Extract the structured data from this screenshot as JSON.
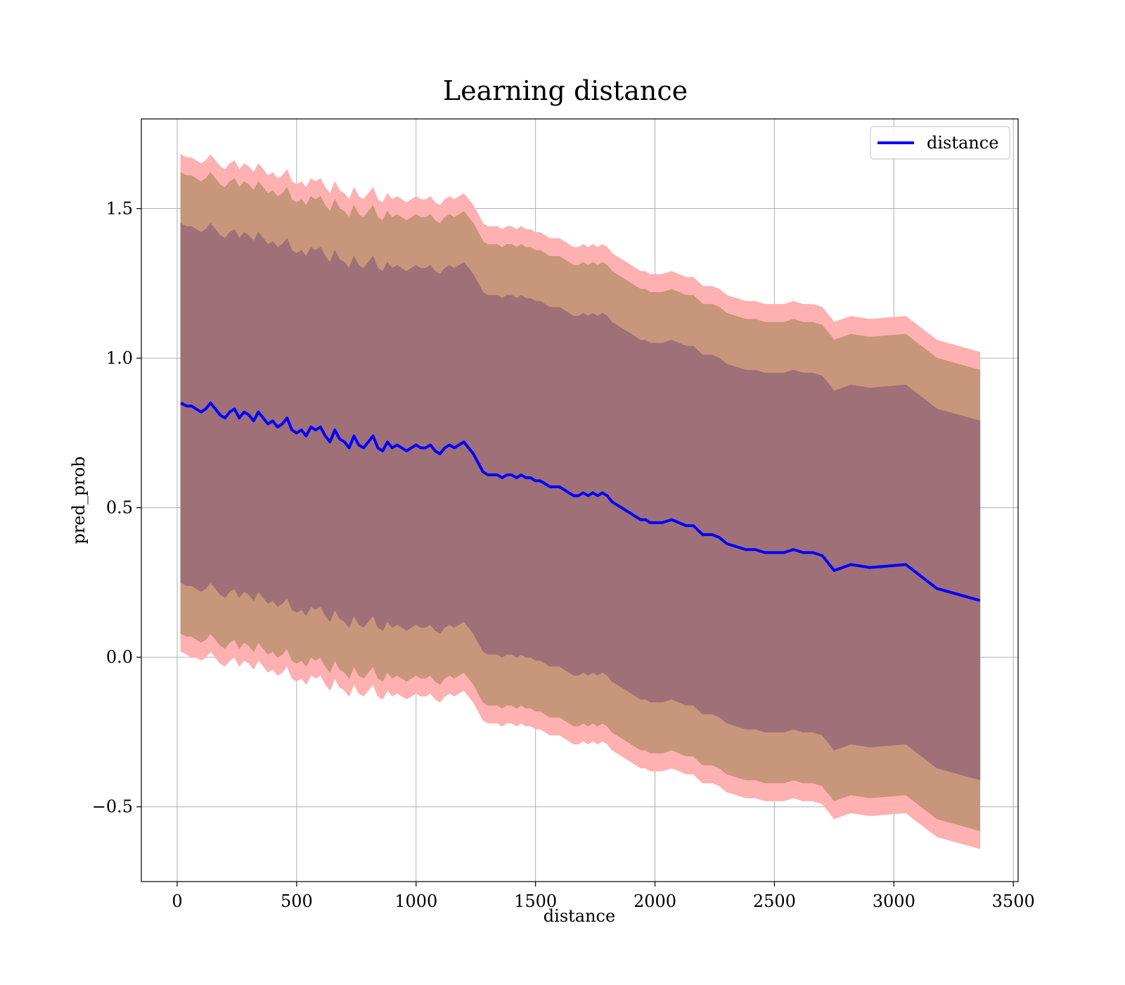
{
  "chart_data": {
    "type": "line",
    "title": "Learning distance",
    "xlabel": "distance",
    "ylabel": "pred_prob",
    "xlim": [
      -150,
      3520
    ],
    "ylim": [
      -0.75,
      1.8
    ],
    "grid": true,
    "legend_position": "top-right",
    "x_ticks": [
      0,
      500,
      1000,
      1500,
      2000,
      2500,
      3000,
      3500
    ],
    "x_tick_labels": [
      "0",
      "500",
      "1000",
      "1500",
      "2000",
      "2500",
      "3000",
      "3500"
    ],
    "y_ticks": [
      -0.5,
      0.0,
      0.5,
      1.0,
      1.5
    ],
    "y_tick_labels": [
      "−0.5",
      "0.0",
      "0.5",
      "1.0",
      "1.5"
    ],
    "colors": {
      "line": "#0000ff",
      "band_outer": "#ffb0b0",
      "band_middle": "#c8967a",
      "band_inner": "#a07078"
    },
    "series": [
      {
        "name": "distance",
        "x": [
          15,
          40,
          60,
          80,
          100,
          120,
          140,
          160,
          180,
          200,
          220,
          240,
          260,
          280,
          300,
          320,
          340,
          360,
          380,
          400,
          420,
          440,
          460,
          480,
          500,
          520,
          540,
          560,
          580,
          600,
          620,
          640,
          660,
          680,
          700,
          720,
          740,
          760,
          780,
          800,
          820,
          840,
          860,
          880,
          900,
          920,
          940,
          960,
          980,
          1000,
          1020,
          1040,
          1060,
          1080,
          1100,
          1120,
          1140,
          1160,
          1180,
          1200,
          1220,
          1240,
          1260,
          1280,
          1300,
          1320,
          1340,
          1360,
          1380,
          1400,
          1420,
          1440,
          1460,
          1480,
          1500,
          1520,
          1540,
          1560,
          1580,
          1600,
          1620,
          1640,
          1660,
          1680,
          1700,
          1720,
          1740,
          1760,
          1780,
          1800,
          1820,
          1840,
          1860,
          1880,
          1900,
          1920,
          1940,
          1960,
          1980,
          2000,
          2030,
          2070,
          2100,
          2130,
          2160,
          2200,
          2240,
          2270,
          2300,
          2340,
          2380,
          2420,
          2460,
          2500,
          2540,
          2580,
          2620,
          2660,
          2700,
          2750,
          2820,
          2900,
          3050,
          3180,
          3360
        ],
        "values": [
          0.85,
          0.84,
          0.84,
          0.83,
          0.82,
          0.83,
          0.85,
          0.83,
          0.81,
          0.8,
          0.82,
          0.83,
          0.8,
          0.82,
          0.81,
          0.79,
          0.82,
          0.8,
          0.78,
          0.79,
          0.77,
          0.78,
          0.8,
          0.76,
          0.75,
          0.76,
          0.74,
          0.77,
          0.76,
          0.77,
          0.74,
          0.72,
          0.76,
          0.73,
          0.72,
          0.7,
          0.74,
          0.71,
          0.7,
          0.72,
          0.74,
          0.7,
          0.69,
          0.72,
          0.7,
          0.71,
          0.7,
          0.69,
          0.7,
          0.71,
          0.7,
          0.7,
          0.71,
          0.69,
          0.68,
          0.7,
          0.71,
          0.7,
          0.71,
          0.72,
          0.7,
          0.68,
          0.65,
          0.62,
          0.61,
          0.61,
          0.61,
          0.6,
          0.61,
          0.61,
          0.6,
          0.61,
          0.6,
          0.6,
          0.59,
          0.59,
          0.58,
          0.57,
          0.57,
          0.57,
          0.56,
          0.55,
          0.54,
          0.54,
          0.55,
          0.54,
          0.55,
          0.54,
          0.55,
          0.54,
          0.52,
          0.51,
          0.5,
          0.49,
          0.48,
          0.47,
          0.46,
          0.46,
          0.45,
          0.45,
          0.45,
          0.46,
          0.45,
          0.44,
          0.44,
          0.41,
          0.41,
          0.4,
          0.38,
          0.37,
          0.36,
          0.36,
          0.35,
          0.35,
          0.35,
          0.36,
          0.35,
          0.35,
          0.34,
          0.29,
          0.31,
          0.3,
          0.31,
          0.23,
          0.19
        ]
      }
    ],
    "bands": [
      {
        "level": "outer",
        "lower": [
          0.02,
          0.01,
          0.0,
          0.0,
          -0.01,
          0.0,
          0.02,
          0.0,
          -0.02,
          -0.03,
          -0.01,
          0.0,
          -0.03,
          -0.01,
          -0.02,
          -0.04,
          -0.01,
          -0.03,
          -0.05,
          -0.04,
          -0.06,
          -0.05,
          -0.03,
          -0.07,
          -0.08,
          -0.07,
          -0.09,
          -0.06,
          -0.07,
          -0.06,
          -0.09,
          -0.11,
          -0.07,
          -0.1,
          -0.11,
          -0.13,
          -0.09,
          -0.12,
          -0.13,
          -0.11,
          -0.09,
          -0.13,
          -0.14,
          -0.11,
          -0.13,
          -0.12,
          -0.13,
          -0.14,
          -0.13,
          -0.12,
          -0.13,
          -0.13,
          -0.12,
          -0.14,
          -0.15,
          -0.13,
          -0.12,
          -0.13,
          -0.12,
          -0.11,
          -0.13,
          -0.15,
          -0.18,
          -0.21,
          -0.22,
          -0.22,
          -0.22,
          -0.23,
          -0.22,
          -0.22,
          -0.23,
          -0.22,
          -0.23,
          -0.23,
          -0.24,
          -0.24,
          -0.25,
          -0.26,
          -0.26,
          -0.26,
          -0.27,
          -0.28,
          -0.29,
          -0.29,
          -0.28,
          -0.29,
          -0.28,
          -0.29,
          -0.28,
          -0.29,
          -0.31,
          -0.32,
          -0.33,
          -0.34,
          -0.35,
          -0.36,
          -0.37,
          -0.37,
          -0.38,
          -0.38,
          -0.38,
          -0.37,
          -0.38,
          -0.39,
          -0.39,
          -0.42,
          -0.42,
          -0.43,
          -0.45,
          -0.46,
          -0.47,
          -0.47,
          -0.48,
          -0.48,
          -0.48,
          -0.47,
          -0.48,
          -0.48,
          -0.49,
          -0.54,
          -0.52,
          -0.53,
          -0.52,
          -0.6,
          -0.64
        ],
        "upper": [
          1.68,
          1.67,
          1.67,
          1.66,
          1.65,
          1.66,
          1.68,
          1.66,
          1.64,
          1.63,
          1.65,
          1.66,
          1.63,
          1.65,
          1.64,
          1.62,
          1.65,
          1.63,
          1.61,
          1.62,
          1.6,
          1.61,
          1.63,
          1.59,
          1.58,
          1.59,
          1.57,
          1.6,
          1.59,
          1.6,
          1.57,
          1.55,
          1.59,
          1.56,
          1.55,
          1.53,
          1.57,
          1.54,
          1.53,
          1.55,
          1.57,
          1.53,
          1.52,
          1.55,
          1.53,
          1.54,
          1.53,
          1.52,
          1.53,
          1.54,
          1.53,
          1.53,
          1.54,
          1.52,
          1.51,
          1.53,
          1.54,
          1.53,
          1.54,
          1.55,
          1.53,
          1.51,
          1.48,
          1.45,
          1.44,
          1.44,
          1.44,
          1.43,
          1.44,
          1.44,
          1.43,
          1.44,
          1.43,
          1.43,
          1.42,
          1.42,
          1.41,
          1.4,
          1.4,
          1.4,
          1.39,
          1.38,
          1.37,
          1.37,
          1.38,
          1.37,
          1.38,
          1.37,
          1.38,
          1.37,
          1.35,
          1.34,
          1.33,
          1.32,
          1.31,
          1.3,
          1.29,
          1.29,
          1.28,
          1.28,
          1.28,
          1.29,
          1.28,
          1.27,
          1.27,
          1.24,
          1.24,
          1.23,
          1.21,
          1.2,
          1.19,
          1.19,
          1.18,
          1.18,
          1.18,
          1.19,
          1.18,
          1.18,
          1.17,
          1.12,
          1.14,
          1.13,
          1.14,
          1.06,
          1.02
        ]
      },
      {
        "level": "middle",
        "lower": [
          0.08,
          0.07,
          0.07,
          0.06,
          0.05,
          0.06,
          0.08,
          0.06,
          0.04,
          0.03,
          0.05,
          0.06,
          0.03,
          0.05,
          0.04,
          0.02,
          0.05,
          0.03,
          0.01,
          0.02,
          0.0,
          0.01,
          0.03,
          -0.01,
          -0.02,
          -0.01,
          -0.03,
          0.0,
          -0.01,
          0.0,
          -0.03,
          -0.05,
          -0.01,
          -0.04,
          -0.05,
          -0.07,
          -0.03,
          -0.06,
          -0.07,
          -0.05,
          -0.03,
          -0.07,
          -0.08,
          -0.05,
          -0.07,
          -0.06,
          -0.07,
          -0.08,
          -0.07,
          -0.06,
          -0.07,
          -0.07,
          -0.06,
          -0.08,
          -0.09,
          -0.07,
          -0.06,
          -0.07,
          -0.06,
          -0.05,
          -0.07,
          -0.09,
          -0.12,
          -0.15,
          -0.16,
          -0.16,
          -0.16,
          -0.17,
          -0.16,
          -0.16,
          -0.17,
          -0.16,
          -0.17,
          -0.17,
          -0.18,
          -0.18,
          -0.19,
          -0.2,
          -0.2,
          -0.2,
          -0.21,
          -0.22,
          -0.23,
          -0.23,
          -0.22,
          -0.23,
          -0.22,
          -0.23,
          -0.22,
          -0.23,
          -0.25,
          -0.26,
          -0.27,
          -0.28,
          -0.29,
          -0.3,
          -0.31,
          -0.31,
          -0.32,
          -0.32,
          -0.32,
          -0.31,
          -0.32,
          -0.33,
          -0.33,
          -0.36,
          -0.36,
          -0.37,
          -0.39,
          -0.4,
          -0.41,
          -0.41,
          -0.42,
          -0.42,
          -0.42,
          -0.41,
          -0.42,
          -0.42,
          -0.43,
          -0.48,
          -0.46,
          -0.47,
          -0.46,
          -0.54,
          -0.58
        ],
        "upper": [
          1.62,
          1.61,
          1.61,
          1.6,
          1.59,
          1.6,
          1.62,
          1.6,
          1.58,
          1.57,
          1.59,
          1.6,
          1.57,
          1.59,
          1.58,
          1.56,
          1.59,
          1.57,
          1.55,
          1.56,
          1.54,
          1.55,
          1.57,
          1.53,
          1.52,
          1.53,
          1.51,
          1.54,
          1.53,
          1.54,
          1.51,
          1.49,
          1.53,
          1.5,
          1.49,
          1.47,
          1.51,
          1.48,
          1.47,
          1.49,
          1.51,
          1.47,
          1.46,
          1.49,
          1.47,
          1.48,
          1.47,
          1.46,
          1.47,
          1.48,
          1.47,
          1.47,
          1.48,
          1.46,
          1.45,
          1.47,
          1.48,
          1.47,
          1.48,
          1.49,
          1.47,
          1.45,
          1.42,
          1.39,
          1.38,
          1.38,
          1.38,
          1.37,
          1.38,
          1.38,
          1.37,
          1.38,
          1.37,
          1.37,
          1.36,
          1.36,
          1.35,
          1.34,
          1.34,
          1.34,
          1.33,
          1.32,
          1.31,
          1.31,
          1.32,
          1.31,
          1.32,
          1.31,
          1.32,
          1.31,
          1.29,
          1.28,
          1.27,
          1.26,
          1.25,
          1.24,
          1.23,
          1.23,
          1.22,
          1.22,
          1.22,
          1.23,
          1.22,
          1.21,
          1.21,
          1.18,
          1.18,
          1.17,
          1.15,
          1.14,
          1.13,
          1.13,
          1.12,
          1.12,
          1.12,
          1.13,
          1.12,
          1.12,
          1.11,
          1.06,
          1.08,
          1.07,
          1.08,
          1.0,
          0.96
        ]
      },
      {
        "level": "inner",
        "lower": [
          0.25,
          0.24,
          0.24,
          0.23,
          0.22,
          0.23,
          0.25,
          0.23,
          0.21,
          0.2,
          0.22,
          0.23,
          0.2,
          0.22,
          0.21,
          0.19,
          0.22,
          0.2,
          0.18,
          0.19,
          0.17,
          0.18,
          0.2,
          0.16,
          0.15,
          0.16,
          0.14,
          0.17,
          0.16,
          0.17,
          0.14,
          0.12,
          0.16,
          0.13,
          0.12,
          0.1,
          0.14,
          0.11,
          0.1,
          0.12,
          0.14,
          0.1,
          0.09,
          0.12,
          0.1,
          0.11,
          0.1,
          0.09,
          0.1,
          0.11,
          0.1,
          0.1,
          0.11,
          0.09,
          0.08,
          0.1,
          0.11,
          0.1,
          0.11,
          0.12,
          0.1,
          0.08,
          0.05,
          0.02,
          0.01,
          0.01,
          0.01,
          0.0,
          0.01,
          0.01,
          0.0,
          0.01,
          0.0,
          0.0,
          -0.01,
          -0.01,
          -0.02,
          -0.03,
          -0.03,
          -0.03,
          -0.04,
          -0.05,
          -0.06,
          -0.06,
          -0.05,
          -0.06,
          -0.05,
          -0.06,
          -0.05,
          -0.06,
          -0.08,
          -0.09,
          -0.1,
          -0.11,
          -0.12,
          -0.13,
          -0.14,
          -0.14,
          -0.15,
          -0.15,
          -0.15,
          -0.14,
          -0.15,
          -0.16,
          -0.16,
          -0.19,
          -0.19,
          -0.2,
          -0.22,
          -0.23,
          -0.24,
          -0.24,
          -0.25,
          -0.25,
          -0.25,
          -0.24,
          -0.25,
          -0.25,
          -0.26,
          -0.31,
          -0.29,
          -0.3,
          -0.29,
          -0.37,
          -0.41
        ],
        "upper": [
          1.45,
          1.44,
          1.44,
          1.43,
          1.42,
          1.43,
          1.45,
          1.43,
          1.41,
          1.4,
          1.42,
          1.43,
          1.4,
          1.42,
          1.41,
          1.39,
          1.42,
          1.4,
          1.38,
          1.39,
          1.37,
          1.38,
          1.4,
          1.36,
          1.35,
          1.36,
          1.34,
          1.37,
          1.36,
          1.37,
          1.34,
          1.32,
          1.36,
          1.33,
          1.32,
          1.3,
          1.34,
          1.31,
          1.3,
          1.32,
          1.34,
          1.3,
          1.29,
          1.32,
          1.3,
          1.31,
          1.3,
          1.29,
          1.3,
          1.31,
          1.3,
          1.3,
          1.31,
          1.29,
          1.28,
          1.3,
          1.31,
          1.3,
          1.31,
          1.32,
          1.3,
          1.28,
          1.25,
          1.22,
          1.21,
          1.21,
          1.21,
          1.2,
          1.21,
          1.21,
          1.2,
          1.21,
          1.2,
          1.2,
          1.19,
          1.19,
          1.18,
          1.17,
          1.17,
          1.17,
          1.16,
          1.15,
          1.14,
          1.14,
          1.15,
          1.14,
          1.15,
          1.14,
          1.15,
          1.14,
          1.12,
          1.11,
          1.1,
          1.09,
          1.08,
          1.07,
          1.06,
          1.06,
          1.05,
          1.05,
          1.05,
          1.06,
          1.05,
          1.04,
          1.04,
          1.01,
          1.01,
          1.0,
          0.98,
          0.97,
          0.96,
          0.96,
          0.95,
          0.95,
          0.95,
          0.96,
          0.95,
          0.95,
          0.94,
          0.89,
          0.91,
          0.9,
          0.91,
          0.83,
          0.79
        ]
      }
    ]
  }
}
